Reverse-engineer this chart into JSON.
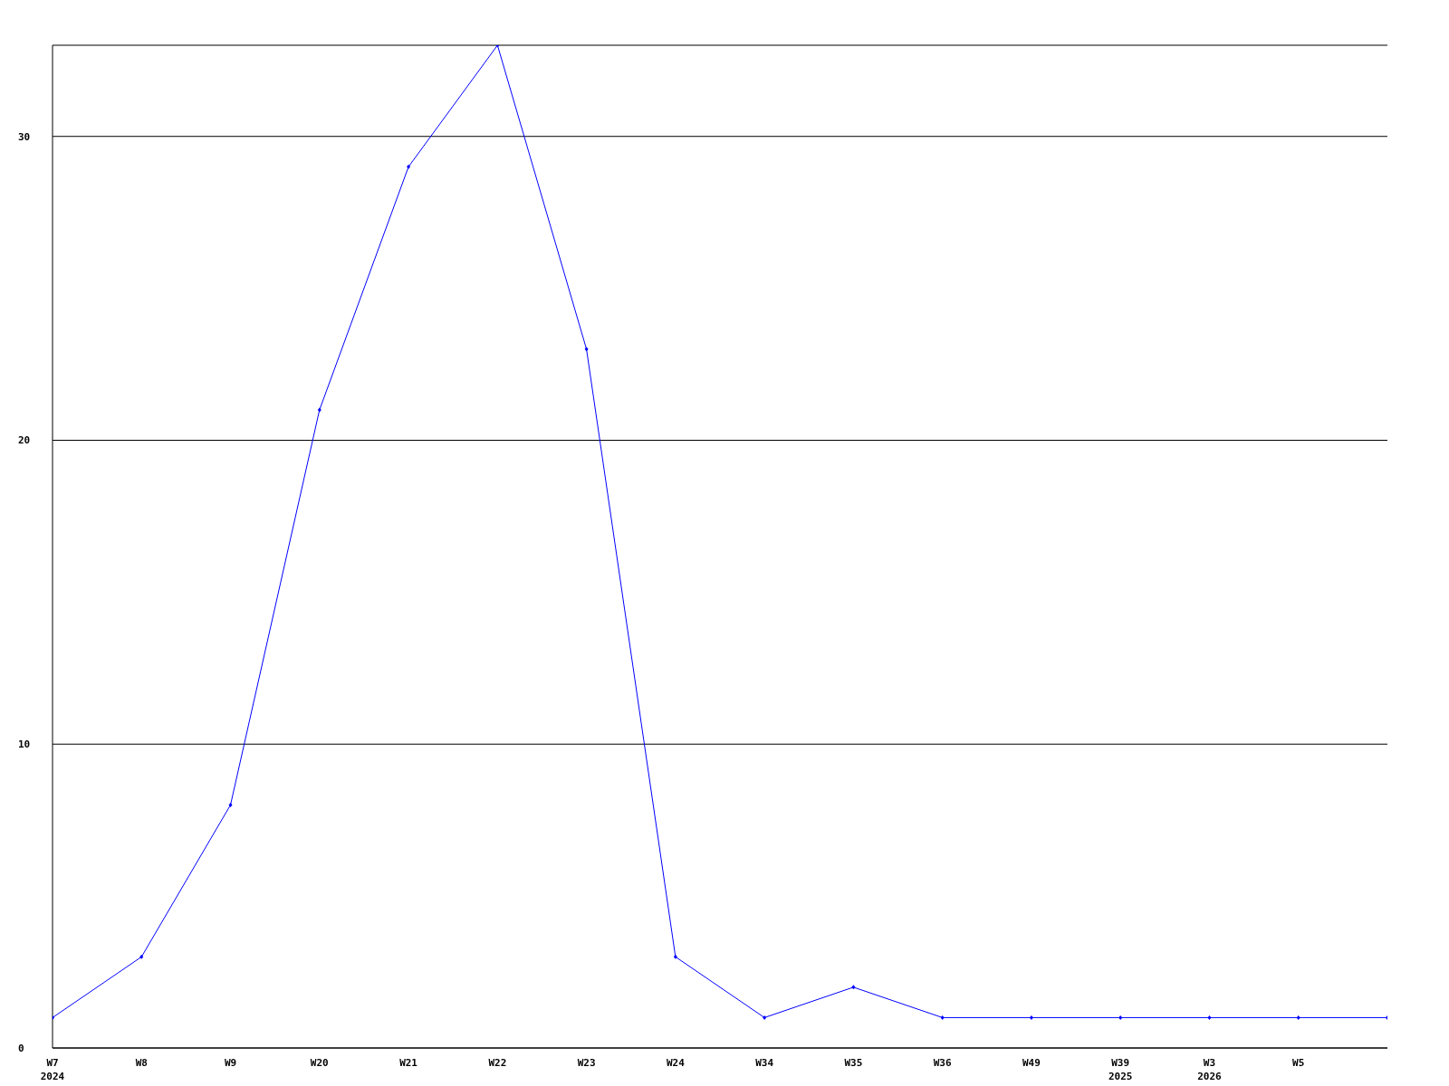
{
  "chart_data": {
    "type": "line",
    "categories": [
      "W7\n2024",
      "W8",
      "W9",
      "W20",
      "W21",
      "W22",
      "W23",
      "W24",
      "W34",
      "W35",
      "W36",
      "W49",
      "W39\n2025",
      "W3\n2026",
      "W5",
      null
    ],
    "series": [
      {
        "color": "#0000ff",
        "values": [
          1,
          3,
          8,
          21,
          29,
          33,
          23,
          3,
          1,
          2,
          1,
          1,
          1,
          1,
          1,
          1
        ]
      }
    ],
    "ylim": [
      0,
      33
    ],
    "yticks": [
      0,
      10,
      20,
      30
    ],
    "grid": "y",
    "marker": "diamond",
    "line_style": "solid"
  }
}
